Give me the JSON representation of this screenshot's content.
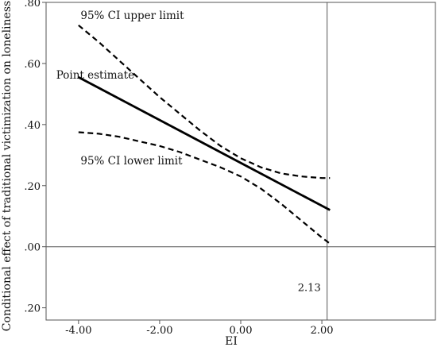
{
  "chart_data": {
    "type": "line",
    "title": "",
    "xlabel": "EI",
    "ylabel": "Conditional effect of traditional victimization on loneliness",
    "xlim": [
      -4.8,
      4.8
    ],
    "ylim": [
      -0.24,
      0.8
    ],
    "x_ticks": [
      {
        "value": -4.0,
        "label": "-4.00"
      },
      {
        "value": -2.0,
        "label": "-2.00"
      },
      {
        "value": 0.0,
        "label": "0.00"
      },
      {
        "value": 2.0,
        "label": "2.00"
      }
    ],
    "y_ticks": [
      {
        "value": 0.8,
        "label": ".80"
      },
      {
        "value": 0.6,
        "label": ".60"
      },
      {
        "value": 0.4,
        "label": ".40"
      },
      {
        "value": 0.2,
        "label": ".20"
      },
      {
        "value": 0.0,
        "label": ".00"
      },
      {
        "value": -0.2,
        "label": ".20"
      }
    ],
    "reference_lines": {
      "horizontal_y": 0.0,
      "vertical_x": 2.13,
      "vertical_label": "2.13"
    },
    "series": [
      {
        "name": "Point estimate",
        "style": "solid",
        "x": [
          -4.0,
          2.2
        ],
        "y": [
          0.555,
          0.12
        ]
      },
      {
        "name": "95% CI upper limit",
        "style": "dashed",
        "x": [
          -4.0,
          -3.5,
          -3.0,
          -2.5,
          -2.0,
          -1.5,
          -1.0,
          -0.5,
          0.0,
          0.5,
          1.0,
          1.5,
          2.0,
          2.2
        ],
        "y": [
          0.725,
          0.67,
          0.61,
          0.55,
          0.49,
          0.435,
          0.38,
          0.33,
          0.29,
          0.26,
          0.24,
          0.23,
          0.225,
          0.225
        ]
      },
      {
        "name": "95% CI lower limit",
        "style": "dashed",
        "x": [
          -4.0,
          -3.5,
          -3.0,
          -2.5,
          -2.0,
          -1.5,
          -1.0,
          -0.5,
          0.0,
          0.5,
          1.0,
          1.5,
          2.0,
          2.2
        ],
        "y": [
          0.375,
          0.37,
          0.36,
          0.345,
          0.33,
          0.31,
          0.285,
          0.26,
          0.23,
          0.19,
          0.14,
          0.085,
          0.03,
          0.01
        ]
      }
    ],
    "annotations": [
      {
        "text": "95% CI upper limit",
        "at_x": -3.95,
        "at_y": 0.745
      },
      {
        "text": "Point estimate",
        "at_x": -4.55,
        "at_y": 0.55
      },
      {
        "text": "95% CI lower limit",
        "at_x": -3.95,
        "at_y": 0.27
      }
    ],
    "grid": false,
    "legend": "none"
  }
}
